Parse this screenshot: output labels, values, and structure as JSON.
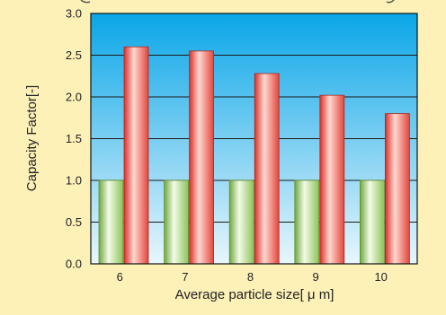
{
  "chart_data": {
    "type": "bar",
    "title": "",
    "xlabel": "Average particle size[ μ m]",
    "ylabel": "Capacity Factor[-]",
    "categories": [
      "6",
      "7",
      "8",
      "9",
      "10"
    ],
    "series": [
      {
        "values": [
          1.0,
          1.0,
          1.0,
          1.0,
          1.0
        ]
      },
      {
        "values": [
          2.6,
          2.55,
          2.28,
          2.02,
          1.8
        ]
      }
    ],
    "ylim": [
      0,
      3.0
    ],
    "yticks": [
      "0.0",
      "0.5",
      "1.0",
      "1.5",
      "2.0",
      "2.5",
      "3.0"
    ],
    "grid": true,
    "legend": "none"
  },
  "colors": {
    "page_background": "#fdf1b8",
    "plot_gradient_top": "#0aa6e8",
    "plot_gradient_bottom": "#e8f6fc",
    "series_1_fill": "#b7df8d",
    "series_2_fill": "#f06a5e",
    "gridline": "#1a1a1a"
  }
}
